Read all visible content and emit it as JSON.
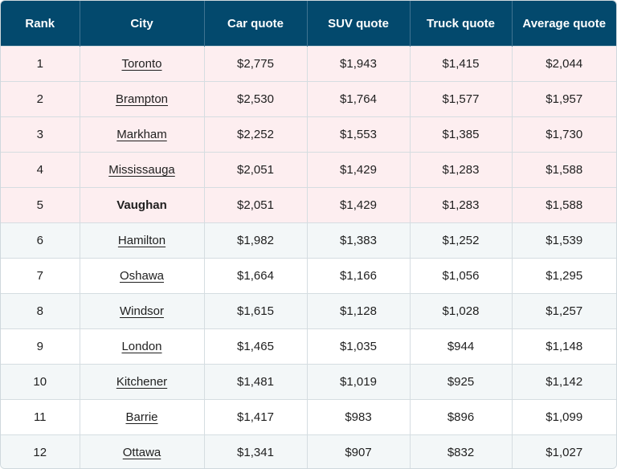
{
  "headers": [
    "Rank",
    "City",
    "Car quote",
    "SUV quote",
    "Truck quote",
    "Average quote"
  ],
  "rows": [
    {
      "rank": "1",
      "city": "Toronto",
      "car": "$2,775",
      "suv": "$1,943",
      "truck": "$1,415",
      "avg": "$2,044",
      "style": "hl",
      "link": true
    },
    {
      "rank": "2",
      "city": "Brampton",
      "car": "$2,530",
      "suv": "$1,764",
      "truck": "$1,577",
      "avg": "$1,957",
      "style": "hl",
      "link": true
    },
    {
      "rank": "3",
      "city": "Markham",
      "car": "$2,252",
      "suv": "$1,553",
      "truck": "$1,385",
      "avg": "$1,730",
      "style": "hl",
      "link": true
    },
    {
      "rank": "4",
      "city": "Mississauga",
      "car": "$2,051",
      "suv": "$1,429",
      "truck": "$1,283",
      "avg": "$1,588",
      "style": "hl",
      "link": true
    },
    {
      "rank": "5",
      "city": "Vaughan",
      "car": "$2,051",
      "suv": "$1,429",
      "truck": "$1,283",
      "avg": "$1,588",
      "style": "hl",
      "link": false
    },
    {
      "rank": "6",
      "city": "Hamilton",
      "car": "$1,982",
      "suv": "$1,383",
      "truck": "$1,252",
      "avg": "$1,539",
      "style": "alt",
      "link": true
    },
    {
      "rank": "7",
      "city": "Oshawa",
      "car": "$1,664",
      "suv": "$1,166",
      "truck": "$1,056",
      "avg": "$1,295",
      "style": "plain",
      "link": true
    },
    {
      "rank": "8",
      "city": "Windsor",
      "car": "$1,615",
      "suv": "$1,128",
      "truck": "$1,028",
      "avg": "$1,257",
      "style": "alt",
      "link": true
    },
    {
      "rank": "9",
      "city": "London",
      "car": "$1,465",
      "suv": "$1,035",
      "truck": "$944",
      "avg": "$1,148",
      "style": "plain",
      "link": true
    },
    {
      "rank": "10",
      "city": "Kitchener",
      "car": "$1,481",
      "suv": "$1,019",
      "truck": "$925",
      "avg": "$1,142",
      "style": "alt",
      "link": true
    },
    {
      "rank": "11",
      "city": "Barrie",
      "car": "$1,417",
      "suv": "$983",
      "truck": "$896",
      "avg": "$1,099",
      "style": "plain",
      "link": true
    },
    {
      "rank": "12",
      "city": "Ottawa",
      "car": "$1,341",
      "suv": "$907",
      "truck": "$832",
      "avg": "$1,027",
      "style": "alt",
      "link": true
    }
  ],
  "colors": {
    "header_bg": "#03496d",
    "highlight_row_bg": "#fdeef0",
    "alt_row_bg": "#f3f7f8"
  }
}
